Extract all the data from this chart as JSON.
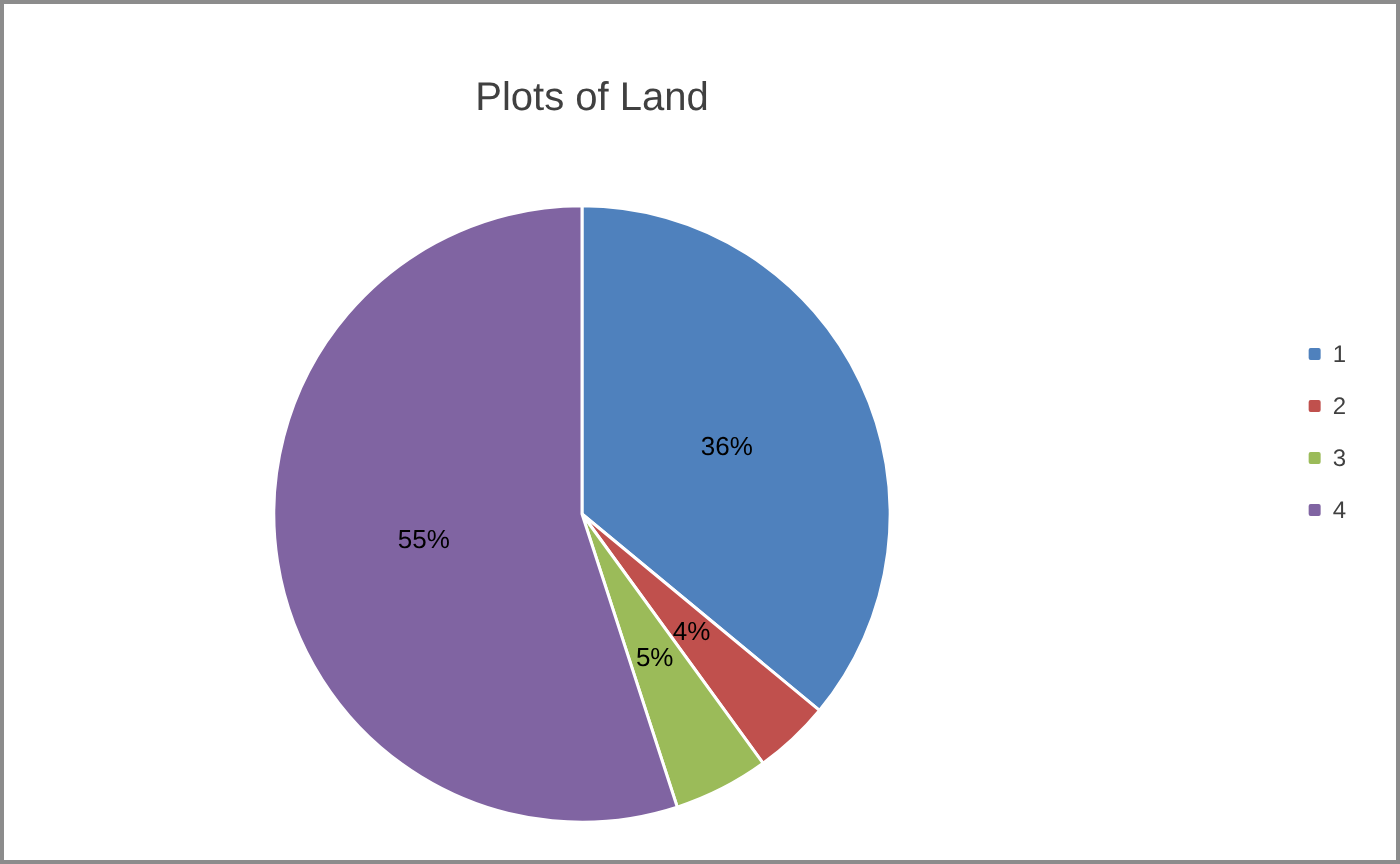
{
  "chart_data": {
    "type": "pie",
    "title": "Plots of Land",
    "categories": [
      "1",
      "2",
      "3",
      "4"
    ],
    "values": [
      36,
      4,
      5,
      55
    ],
    "colors": [
      "#4f81bd",
      "#c0504d",
      "#9bbb59",
      "#8064a2"
    ],
    "value_labels": [
      "36%",
      "4%",
      "5%",
      "55%"
    ],
    "legend": "right"
  }
}
